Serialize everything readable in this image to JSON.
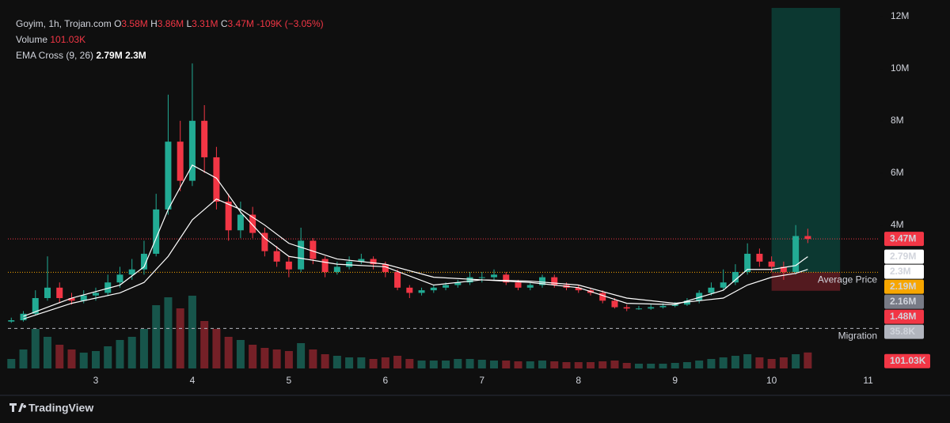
{
  "chart_data": {
    "type": "candlestick",
    "legend": {
      "symbol": "Goyim, 1h, Trojan.com",
      "ohlc": [
        {
          "key": "O",
          "label": "3.58M"
        },
        {
          "key": "H",
          "label": "3.86M"
        },
        {
          "key": "L",
          "label": "3.31M"
        },
        {
          "key": "C",
          "label": "3.47M"
        }
      ],
      "change": "-109K (−3.05%)",
      "volume_name": "Volume",
      "volume_label": "101.03K",
      "ema_name": "EMA Cross (9, 26)",
      "ema_labels": [
        "2.79M",
        "2.3M"
      ]
    },
    "xlim": [
      2.09,
      11.11
    ],
    "xticks": [
      3,
      4,
      5,
      6,
      7,
      8,
      9,
      10,
      11
    ],
    "ylim": [
      -1.62,
      12.33
    ],
    "yticks": [
      {
        "value": 4,
        "label": "4M"
      },
      {
        "value": 6,
        "label": "6M"
      },
      {
        "value": 8,
        "label": "8M"
      },
      {
        "value": 10,
        "label": "10M"
      },
      {
        "value": 12,
        "label": "12M"
      }
    ],
    "up_color": "#22ab94",
    "down_color": "#f23645",
    "x": [
      2.125,
      2.25,
      2.375,
      2.5,
      2.625,
      2.75,
      2.875,
      3,
      3.125,
      3.25,
      3.375,
      3.5,
      3.625,
      3.75,
      3.875,
      4,
      4.125,
      4.25,
      4.375,
      4.5,
      4.625,
      4.75,
      4.875,
      5,
      5.125,
      5.25,
      5.375,
      5.5,
      5.625,
      5.75,
      5.875,
      6,
      6.125,
      6.25,
      6.375,
      6.5,
      6.625,
      6.75,
      6.875,
      7,
      7.125,
      7.25,
      7.375,
      7.5,
      7.625,
      7.75,
      7.875,
      8,
      8.125,
      8.25,
      8.375,
      8.5,
      8.625,
      8.75,
      8.875,
      9,
      9.125,
      9.25,
      9.375,
      9.5,
      9.625,
      9.75,
      9.875,
      10,
      10.125,
      10.25,
      10.375
    ],
    "ohlc": [
      [
        0.3,
        0.45,
        0.25,
        0.35
      ],
      [
        0.35,
        0.7,
        0.3,
        0.6
      ],
      [
        0.6,
        1.5,
        0.55,
        1.2
      ],
      [
        1.2,
        2.8,
        1.1,
        1.6
      ],
      [
        1.6,
        1.8,
        1.0,
        1.2
      ],
      [
        1.2,
        1.4,
        0.95,
        1.1
      ],
      [
        1.1,
        1.5,
        1.0,
        1.3
      ],
      [
        1.3,
        1.6,
        1.1,
        1.4
      ],
      [
        1.4,
        2.1,
        1.3,
        1.8
      ],
      [
        1.8,
        2.4,
        1.6,
        2.1
      ],
      [
        2.1,
        2.7,
        1.9,
        2.3
      ],
      [
        2.3,
        3.4,
        2.1,
        2.9
      ],
      [
        2.9,
        5.2,
        2.8,
        4.6
      ],
      [
        4.6,
        9.0,
        4.4,
        7.2
      ],
      [
        7.2,
        8.0,
        5.3,
        5.7
      ],
      [
        5.7,
        10.2,
        5.5,
        8.0
      ],
      [
        8.0,
        8.6,
        6.0,
        6.6
      ],
      [
        6.6,
        7.0,
        4.6,
        4.9
      ],
      [
        4.9,
        5.2,
        3.4,
        3.8
      ],
      [
        3.8,
        4.9,
        3.5,
        4.4
      ],
      [
        4.4,
        4.7,
        3.5,
        3.7
      ],
      [
        3.7,
        3.9,
        2.8,
        3.0
      ],
      [
        3.0,
        3.2,
        2.4,
        2.6
      ],
      [
        2.6,
        2.8,
        2.0,
        2.3
      ],
      [
        2.3,
        3.9,
        2.2,
        3.4
      ],
      [
        3.4,
        3.5,
        2.5,
        2.7
      ],
      [
        2.7,
        2.8,
        2.0,
        2.2
      ],
      [
        2.2,
        2.6,
        2.1,
        2.4
      ],
      [
        2.4,
        2.8,
        2.3,
        2.6
      ],
      [
        2.6,
        2.9,
        2.5,
        2.7
      ],
      [
        2.7,
        2.8,
        2.3,
        2.5
      ],
      [
        2.5,
        2.6,
        2.0,
        2.2
      ],
      [
        2.2,
        2.3,
        1.5,
        1.6
      ],
      [
        1.6,
        1.7,
        1.2,
        1.4
      ],
      [
        1.4,
        1.6,
        1.3,
        1.5
      ],
      [
        1.5,
        1.7,
        1.4,
        1.6
      ],
      [
        1.6,
        1.8,
        1.5,
        1.7
      ],
      [
        1.7,
        1.9,
        1.6,
        1.8
      ],
      [
        1.8,
        2.2,
        1.7,
        2.0
      ],
      [
        2.0,
        2.2,
        1.8,
        2.0
      ],
      [
        2.0,
        2.3,
        1.9,
        2.1
      ],
      [
        2.1,
        2.2,
        1.7,
        1.8
      ],
      [
        1.8,
        1.9,
        1.5,
        1.6
      ],
      [
        1.6,
        1.8,
        1.5,
        1.7
      ],
      [
        1.7,
        2.1,
        1.6,
        2.0
      ],
      [
        2.0,
        2.1,
        1.6,
        1.7
      ],
      [
        1.7,
        1.8,
        1.5,
        1.6
      ],
      [
        1.6,
        1.7,
        1.4,
        1.5
      ],
      [
        1.5,
        1.6,
        1.3,
        1.4
      ],
      [
        1.4,
        1.5,
        1.0,
        1.1
      ],
      [
        1.1,
        1.2,
        0.8,
        0.85
      ],
      [
        0.85,
        0.95,
        0.7,
        0.8
      ],
      [
        0.8,
        0.9,
        0.75,
        0.8
      ],
      [
        0.8,
        0.95,
        0.75,
        0.85
      ],
      [
        0.85,
        1.0,
        0.8,
        0.9
      ],
      [
        0.9,
        1.05,
        0.85,
        0.95
      ],
      [
        0.95,
        1.2,
        0.9,
        1.1
      ],
      [
        1.1,
        1.5,
        1.0,
        1.4
      ],
      [
        1.4,
        1.8,
        1.3,
        1.6
      ],
      [
        1.6,
        2.3,
        1.5,
        1.8
      ],
      [
        1.8,
        2.5,
        1.7,
        2.2
      ],
      [
        2.2,
        3.3,
        2.1,
        2.9
      ],
      [
        2.9,
        3.1,
        2.4,
        2.6
      ],
      [
        2.6,
        2.8,
        2.2,
        2.4
      ],
      [
        2.4,
        2.6,
        1.9,
        2.2
      ],
      [
        2.2,
        4.0,
        2.1,
        3.58
      ],
      [
        3.58,
        3.86,
        3.31,
        3.47
      ]
    ],
    "volume": [
      60000,
      120000,
      250000,
      200000,
      150000,
      120000,
      100000,
      110000,
      140000,
      180000,
      200000,
      250000,
      400000,
      450000,
      380000,
      460000,
      300000,
      250000,
      200000,
      180000,
      150000,
      130000,
      120000,
      110000,
      160000,
      120000,
      90000,
      80000,
      70000,
      70000,
      60000,
      70000,
      80000,
      60000,
      50000,
      50000,
      50000,
      60000,
      60000,
      55000,
      50000,
      50000,
      45000,
      45000,
      50000,
      45000,
      40000,
      40000,
      40000,
      45000,
      50000,
      35000,
      30000,
      30000,
      30000,
      35000,
      40000,
      50000,
      60000,
      70000,
      80000,
      90000,
      70000,
      60000,
      70000,
      90000,
      101030
    ],
    "lines": [
      {
        "color": "#ffffff",
        "x": [
          2.25,
          2.75,
          3.25,
          3.5,
          3.75,
          4.0,
          4.25,
          4.5,
          4.75,
          5.0,
          5.5,
          6.0,
          6.5,
          7.0,
          7.5,
          8.0,
          8.5,
          9.0,
          9.5,
          9.75,
          10.0,
          10.25,
          10.375
        ],
        "values": [
          0.5,
          1.2,
          1.7,
          2.4,
          4.6,
          6.3,
          5.8,
          4.5,
          3.5,
          2.8,
          2.5,
          2.4,
          1.7,
          1.9,
          1.8,
          1.6,
          1.0,
          0.95,
          1.5,
          2.3,
          2.3,
          2.45,
          2.79
        ]
      },
      {
        "color": "#ffffff",
        "x": [
          2.25,
          2.75,
          3.25,
          3.5,
          3.75,
          4.0,
          4.25,
          4.5,
          4.75,
          5.0,
          5.5,
          6.0,
          6.5,
          7.0,
          7.5,
          8.0,
          8.5,
          9.0,
          9.5,
          9.75,
          10.0,
          10.25,
          10.375
        ],
        "values": [
          0.4,
          1.0,
          1.4,
          1.8,
          2.8,
          4.2,
          5.0,
          4.6,
          4.0,
          3.3,
          2.7,
          2.5,
          2.0,
          1.9,
          1.85,
          1.7,
          1.2,
          1.0,
          1.2,
          1.7,
          2.0,
          2.15,
          2.3
        ]
      }
    ],
    "position": {
      "x_start": 10,
      "x_end": 10.71,
      "entry": 2.19,
      "target": 12.5,
      "stop": 1.48
    },
    "price_lines": [
      {
        "value": 3.47,
        "color": "#f23645",
        "style": "dotted"
      },
      {
        "value": 2.19,
        "color": "#f7a600",
        "style": "dotted",
        "label": "Average Price"
      },
      {
        "value": 0.0358,
        "color": "#b2b5be",
        "style": "dashed",
        "label": "Migration"
      }
    ],
    "price_labels": [
      {
        "value": 3.47,
        "label": "3.47M",
        "color": "#f23645",
        "text_color": "#ffffff"
      },
      {
        "value": 2.79,
        "label": "2.79M",
        "color": "#ffffff",
        "text_color": "#131722"
      },
      {
        "value": 2.3,
        "label": "2.3M",
        "color": "#ffffff",
        "text_color": "#131722"
      },
      {
        "value": 2.19,
        "label": "2.19M",
        "color": "#f7a600",
        "text_color": "#131722"
      },
      {
        "value": 2.16,
        "label": "2.16M",
        "color": "#787b86",
        "text_color": "#ffffff"
      },
      {
        "value": 1.48,
        "label": "1.48M",
        "color": "#f23645",
        "text_color": "#ffffff"
      },
      {
        "value": 0.0358,
        "label": "35.8K",
        "color": "#b2b5be",
        "text_color": "#131722"
      }
    ],
    "volume_price_label": {
      "value": 101030,
      "label": "101.03K",
      "color": "#f23645",
      "text_color": "#ffffff"
    },
    "brand": "TradingView"
  }
}
